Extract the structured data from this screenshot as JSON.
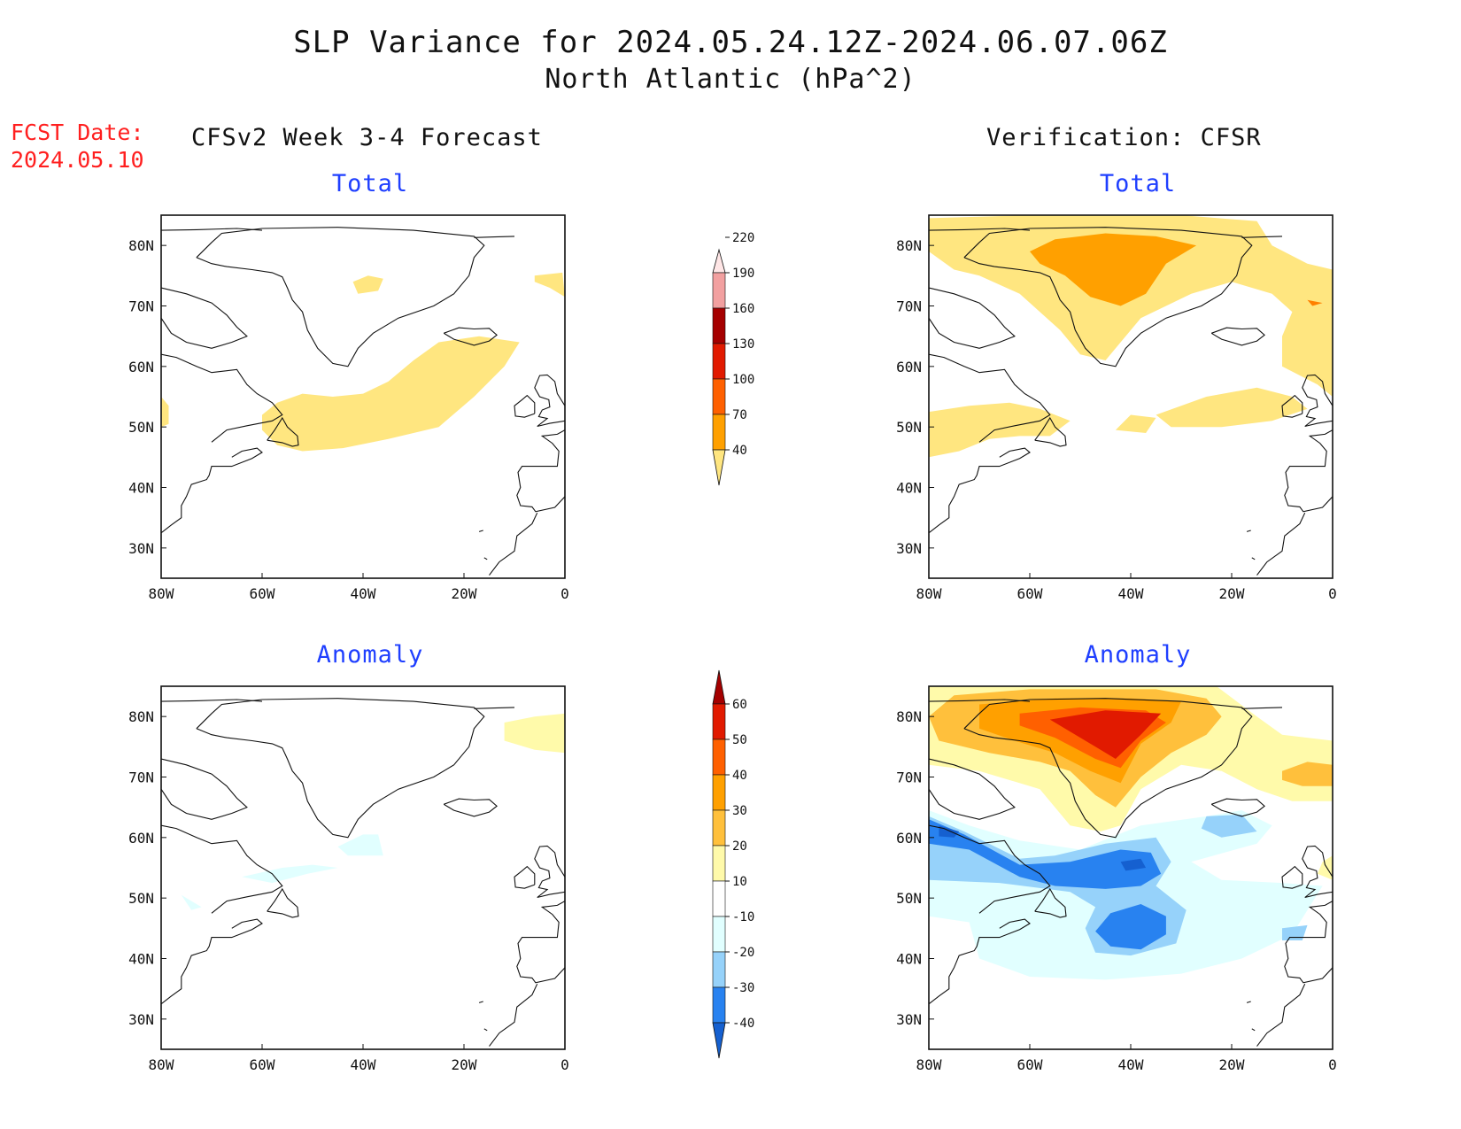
{
  "header": {
    "title": "SLP Variance for 2024.05.24.12Z-2024.06.07.06Z",
    "subtitle": "North Atlantic (hPa^2)",
    "fcst_line1": "FCST Date:",
    "fcst_line2": "2024.05.10"
  },
  "columns": {
    "left": "CFSv2 Week 3-4 Forecast",
    "right": "Verification: CFSR"
  },
  "panels": {
    "fc_total": {
      "title": "Total"
    },
    "ver_total": {
      "title": "Total"
    },
    "fc_anom": {
      "title": "Anomaly"
    },
    "ver_anom": {
      "title": "Anomaly"
    }
  },
  "axes": {
    "lon_ticks": [
      -80,
      -60,
      -40,
      -20,
      0
    ],
    "lon_labels": [
      "80W",
      "60W",
      "40W",
      "20W",
      "0"
    ],
    "lat_ticks": [
      30,
      40,
      50,
      60,
      70,
      80
    ],
    "lat_labels": [
      "30N",
      "40N",
      "50N",
      "60N",
      "70N",
      "80N"
    ],
    "lon_range": [
      -80,
      0
    ],
    "lat_range": [
      25,
      85
    ]
  },
  "colorbars": {
    "total": {
      "levels": [
        "40",
        "70",
        "100",
        "130",
        "160",
        "190",
        "220"
      ],
      "colors": [
        "#ffe680",
        "#ffa000",
        "#ff6000",
        "#e11a00",
        "#a50000",
        "#f2a0a0",
        "#ffe6e6"
      ]
    },
    "anomaly": {
      "levels": [
        "-40",
        "-30",
        "-20",
        "-10",
        "10",
        "20",
        "30",
        "40",
        "50",
        "60"
      ],
      "colors": [
        "#1560d0",
        "#2882f0",
        "#96d2fa",
        "#e1ffff",
        "#ffffff",
        "#fffaaa",
        "#ffc03c",
        "#ffa000",
        "#ff6000",
        "#e11a00",
        "#a50000"
      ]
    }
  }
}
